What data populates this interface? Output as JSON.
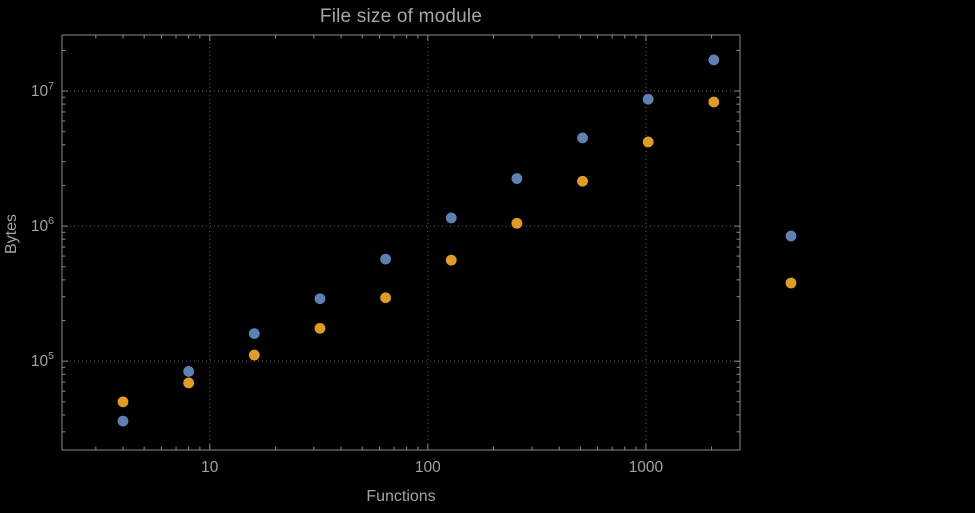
{
  "chart_data": {
    "type": "scatter",
    "title": "File size of module",
    "xlabel": "Functions",
    "ylabel": "Bytes",
    "x_scale": "log",
    "y_scale": "log",
    "xlim": [
      2.1,
      2700
    ],
    "ylim": [
      22000,
      26000000
    ],
    "grid": true,
    "grid_style": "dotted",
    "legend_position": "right-center",
    "x_ticks": {
      "values": [
        10,
        100,
        1000
      ],
      "labels": [
        "10",
        "100",
        "1000"
      ]
    },
    "y_ticks": {
      "values": [
        100000,
        1000000,
        10000000
      ],
      "base": "10",
      "exponents": [
        "5",
        "6",
        "7"
      ]
    },
    "x": [
      4,
      8,
      16,
      32,
      64,
      128,
      256,
      512,
      1024,
      2048
    ],
    "series": [
      {
        "color": "#5e81b5",
        "values": [
          36000,
          84000,
          160000,
          290000,
          570000,
          1150000,
          2250000,
          4500000,
          8700000,
          17000000
        ]
      },
      {
        "color": "#e19c24",
        "values": [
          50000,
          69000,
          111000,
          175000,
          295000,
          560000,
          1050000,
          2150000,
          4200000,
          8300000
        ]
      }
    ],
    "frame_color": "#8a8a8a",
    "grid_color": "#5e5e5e",
    "text_color": "#a2a2a2"
  }
}
